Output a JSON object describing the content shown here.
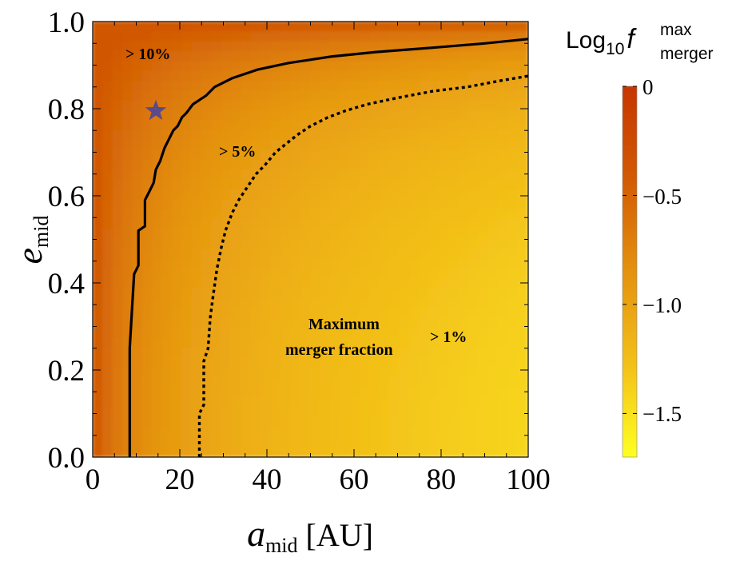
{
  "chart_data": {
    "type": "heatmap",
    "title": "",
    "xlabel": {
      "main": "a",
      "sub": "mid",
      "unit": "[AU]"
    },
    "ylabel": {
      "main": "e",
      "sub": "mid"
    },
    "xlim": [
      0,
      100
    ],
    "ylim": [
      0,
      1
    ],
    "x_ticks": [
      "0",
      "20",
      "40",
      "60",
      "80",
      "100"
    ],
    "y_ticks": [
      "0.0",
      "0.2",
      "0.4",
      "0.6",
      "0.8",
      "1.0"
    ],
    "colorbar": {
      "title_main": "Log",
      "title_sub": "10",
      "title_f": "f",
      "title_sup": "max",
      "title_sub2": "merger",
      "range": [
        -1.7,
        0
      ],
      "ticks": [
        "0",
        "−0.5",
        "−1.0",
        "−1.5"
      ],
      "tick_values": [
        0,
        -0.5,
        -1.0,
        -1.5
      ],
      "colors": [
        "#ffff22",
        "#f3c019",
        "#e4920f",
        "#d25a04",
        "#c63600"
      ]
    },
    "contours": [
      {
        "label": "> 10%",
        "level": -1.0,
        "style": "solid",
        "points": [
          [
            8.5,
            0.0
          ],
          [
            8.5,
            0.25
          ],
          [
            9.5,
            0.42
          ],
          [
            10.5,
            0.44
          ],
          [
            10.5,
            0.52
          ],
          [
            12,
            0.53
          ],
          [
            12,
            0.59
          ],
          [
            13,
            0.61
          ],
          [
            14,
            0.63
          ],
          [
            14.5,
            0.66
          ],
          [
            15.5,
            0.68
          ],
          [
            16.5,
            0.71
          ],
          [
            17.5,
            0.73
          ],
          [
            18.5,
            0.75
          ],
          [
            19.5,
            0.76
          ],
          [
            20.5,
            0.78
          ],
          [
            21.5,
            0.79
          ],
          [
            23,
            0.81
          ],
          [
            26,
            0.83
          ],
          [
            28,
            0.85
          ],
          [
            32,
            0.87
          ],
          [
            38,
            0.89
          ],
          [
            45,
            0.905
          ],
          [
            55,
            0.92
          ],
          [
            65,
            0.93
          ],
          [
            78,
            0.94
          ],
          [
            90,
            0.95
          ],
          [
            100,
            0.96
          ]
        ]
      },
      {
        "label": "> 5%",
        "level": -1.3,
        "style": "dotted",
        "points": [
          [
            24.5,
            0.0
          ],
          [
            24.5,
            0.1
          ],
          [
            25.5,
            0.12
          ],
          [
            25.5,
            0.22
          ],
          [
            26.5,
            0.25
          ],
          [
            27,
            0.32
          ],
          [
            27.5,
            0.36
          ],
          [
            28.5,
            0.43
          ],
          [
            29.5,
            0.48
          ],
          [
            30.5,
            0.52
          ],
          [
            32,
            0.56
          ],
          [
            33.5,
            0.59
          ],
          [
            35.5,
            0.62
          ],
          [
            37.5,
            0.65
          ],
          [
            39.5,
            0.67
          ],
          [
            42,
            0.7
          ],
          [
            44.5,
            0.72
          ],
          [
            47,
            0.74
          ],
          [
            50,
            0.76
          ],
          [
            54,
            0.78
          ],
          [
            58,
            0.795
          ],
          [
            63,
            0.81
          ],
          [
            70,
            0.825
          ],
          [
            78,
            0.84
          ],
          [
            86,
            0.85
          ],
          [
            94,
            0.865
          ],
          [
            100,
            0.875
          ]
        ]
      }
    ],
    "annotations": [
      {
        "text": "> 10%"
      },
      {
        "text": "> 5%"
      },
      {
        "text": "Maximum"
      },
      {
        "text": "merger fraction"
      },
      {
        "text": "> 1%"
      }
    ],
    "markers": [
      {
        "type": "star",
        "x": 14.5,
        "y": 0.795,
        "color": "#5a4a8a"
      }
    ]
  }
}
